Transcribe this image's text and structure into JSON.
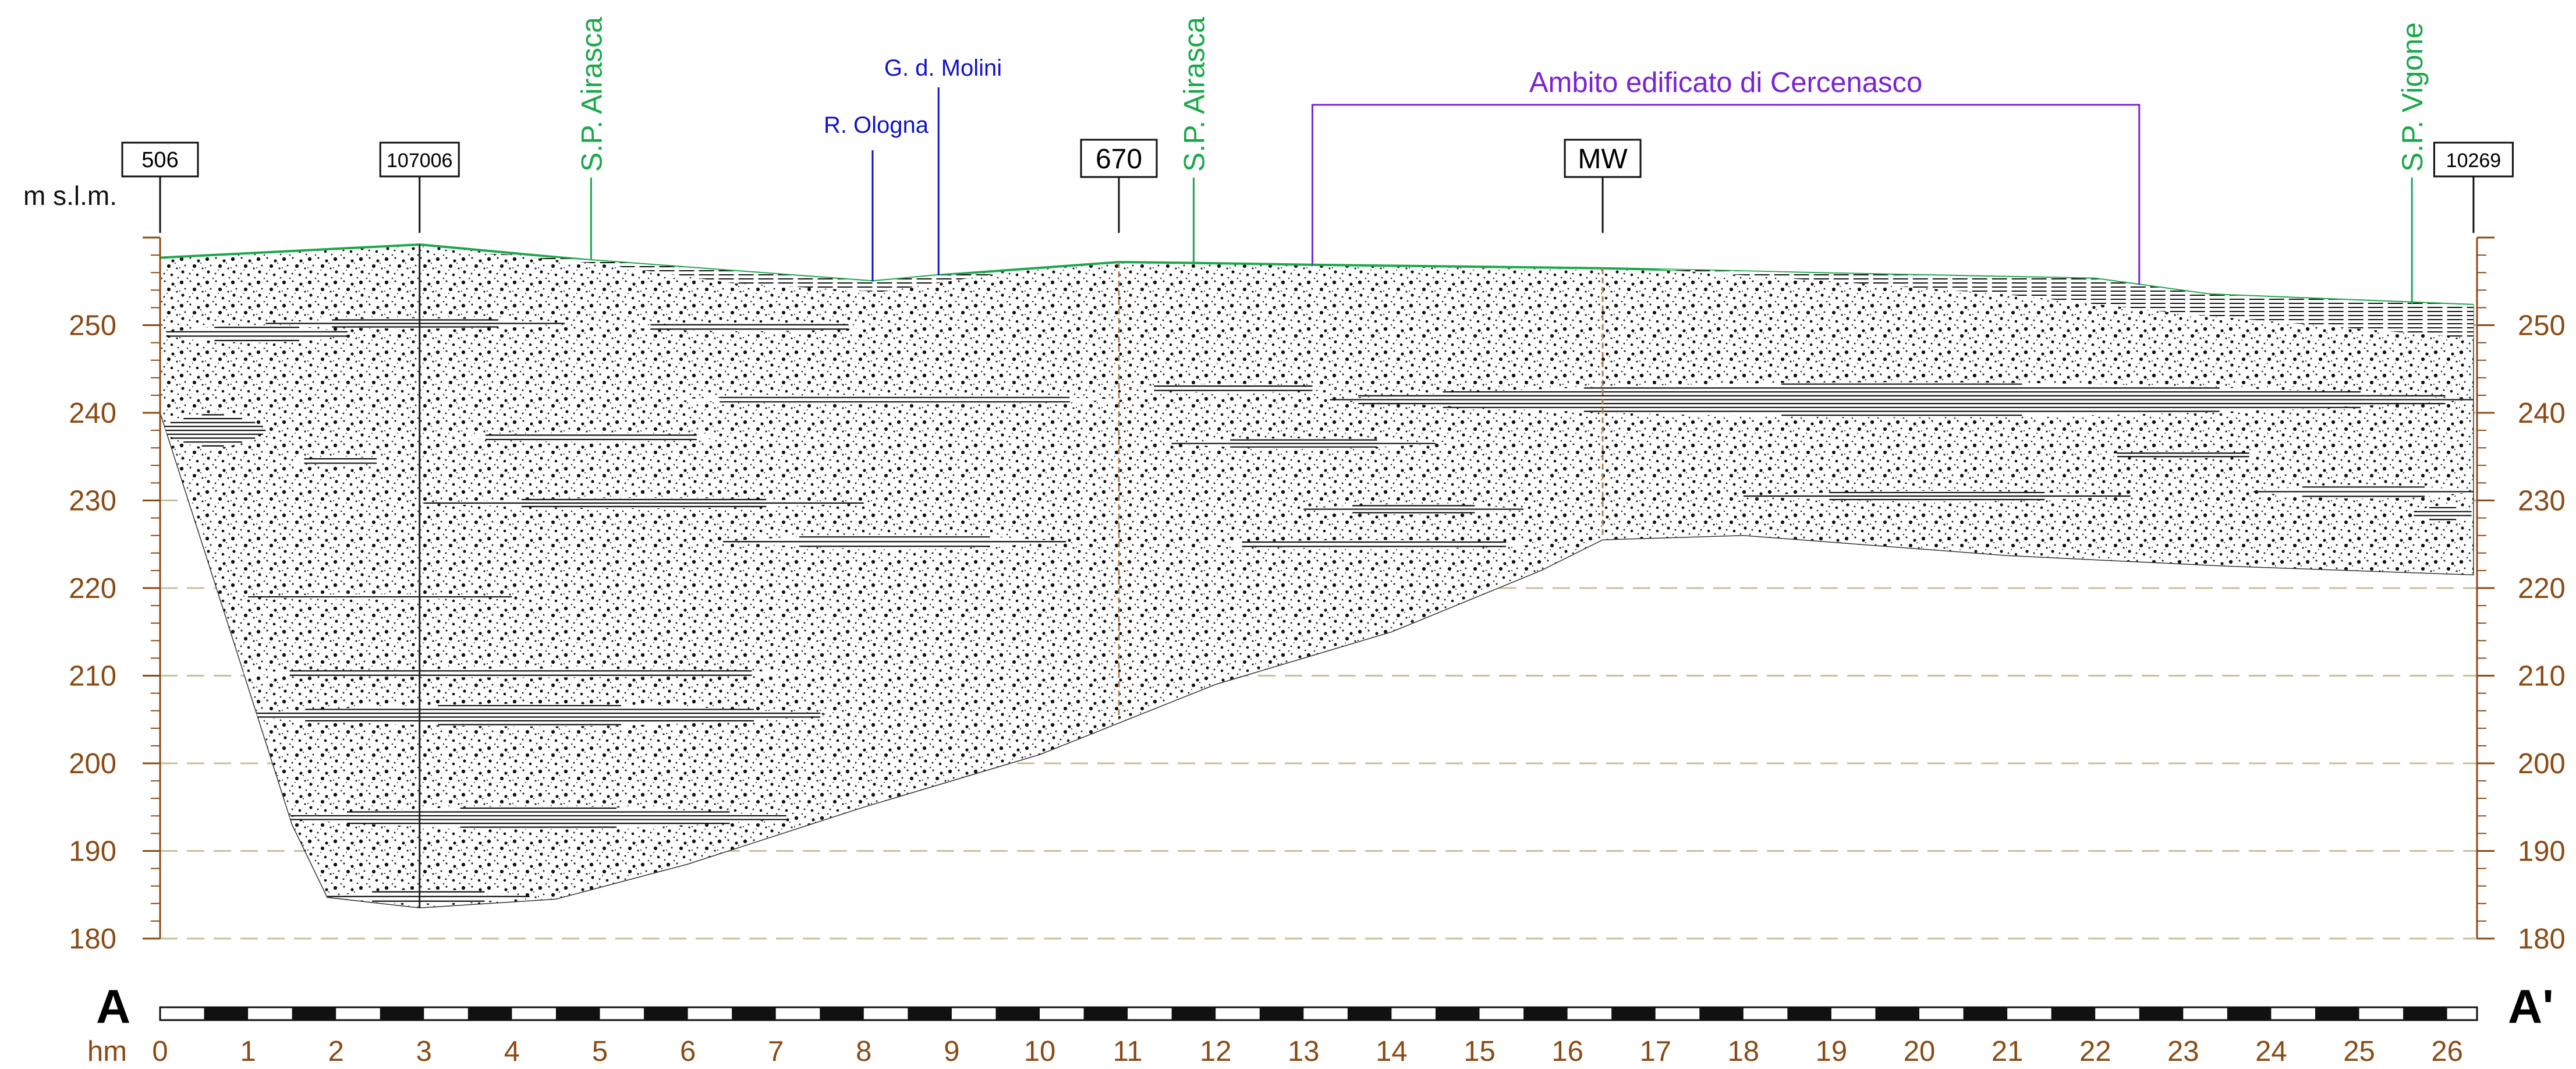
{
  "chart_data": {
    "type": "geologic-cross-section",
    "y_unit_label": "m s.l.m.",
    "x_unit_label": "hm",
    "x_range": [
      0,
      26.3
    ],
    "y_range": [
      180,
      260
    ],
    "y_ticks": [
      180,
      190,
      200,
      210,
      220,
      230,
      240,
      250
    ],
    "x_ticks": [
      "0",
      "1",
      "2",
      "3",
      "4",
      "5",
      "6",
      "7",
      "8",
      "9",
      "10",
      "11",
      "12",
      "13",
      "14",
      "15",
      "16",
      "17",
      "18",
      "19",
      "20",
      "21",
      "22",
      "23",
      "24",
      "25",
      "26"
    ],
    "section_start_label": "A",
    "section_end_label": "A'",
    "wells": [
      {
        "label": "506",
        "x": 0
      },
      {
        "label": "107006",
        "x": 2.95
      },
      {
        "label": "670",
        "x": 10.9
      },
      {
        "label": "MW",
        "x": 16.4
      },
      {
        "label": "10269",
        "x": 26.3
      }
    ],
    "roads": [
      {
        "label": "S.P. Airasca",
        "x": 4.9
      },
      {
        "label": "S.P. Airasca",
        "x": 11.75
      },
      {
        "label": "S.P. Vigone",
        "x": 25.6
      }
    ],
    "watercourses": [
      {
        "label": "R. Ologna",
        "x": 8.1
      },
      {
        "label": "G. d. Molini",
        "x": 8.85
      }
    ],
    "urban_area": {
      "label": "Ambito edificato di Cercenasco",
      "x_start": 13.1,
      "x_end": 22.5
    },
    "ground_profile": [
      [
        0,
        257.7
      ],
      [
        2.95,
        259.2
      ],
      [
        4.9,
        257.4
      ],
      [
        8.1,
        255
      ],
      [
        8.85,
        255.7
      ],
      [
        10.9,
        257.2
      ],
      [
        11.75,
        257.1
      ],
      [
        13.1,
        256.9
      ],
      [
        16.4,
        256.5
      ],
      [
        19,
        255.9
      ],
      [
        22,
        255.3
      ],
      [
        23.3,
        253.5
      ],
      [
        26.3,
        252.3
      ]
    ],
    "base_profile": [
      [
        0,
        240
      ],
      [
        0.8,
        215
      ],
      [
        1.5,
        193
      ],
      [
        1.9,
        184.7
      ],
      [
        2.95,
        183.5
      ],
      [
        4.5,
        184.5
      ],
      [
        6,
        188.5
      ],
      [
        8,
        195
      ],
      [
        10,
        201
      ],
      [
        11,
        205
      ],
      [
        12,
        209
      ],
      [
        14,
        215
      ],
      [
        15.7,
        222
      ],
      [
        16.4,
        225.5
      ],
      [
        18,
        226
      ],
      [
        21,
        223.7
      ],
      [
        23.5,
        222.5
      ],
      [
        26.3,
        221.5
      ]
    ],
    "surface_silt_lenses": [
      {
        "x0": 3.2,
        "x1": 9.6,
        "top": [
          [
            3.2,
            258.6
          ],
          [
            4.9,
            257.4
          ],
          [
            8.1,
            255
          ],
          [
            8.85,
            255.7
          ],
          [
            9.6,
            256
          ]
        ],
        "bottom": [
          [
            3.2,
            258.6
          ],
          [
            5,
            257
          ],
          [
            6.5,
            254.8
          ],
          [
            8.2,
            253.8
          ],
          [
            9.6,
            256
          ]
        ]
      },
      {
        "x0": 17,
        "x1": 26.3,
        "top": [
          [
            17,
            256.4
          ],
          [
            19,
            255.9
          ],
          [
            22,
            255.3
          ],
          [
            23.3,
            253.5
          ],
          [
            26.3,
            252.3
          ]
        ],
        "bottom": [
          [
            17,
            256.4
          ],
          [
            19,
            255
          ],
          [
            21,
            253.5
          ],
          [
            23,
            251.3
          ],
          [
            24.5,
            250
          ],
          [
            26.3,
            248.5
          ]
        ]
      }
    ],
    "silt_lenses": [
      {
        "x0": 0,
        "x1": 2.2,
        "y": 249,
        "t": 2
      },
      {
        "x0": 1.2,
        "x1": 4.6,
        "y": 250.2,
        "t": 1.2
      },
      {
        "x0": 5.2,
        "x1": 8.2,
        "y": 249.8,
        "t": 1
      },
      {
        "x0": 0,
        "x1": 1.2,
        "y": 238,
        "t": 4
      },
      {
        "x0": 1.5,
        "x1": 2.6,
        "y": 234.5,
        "t": 1
      },
      {
        "x0": 3.3,
        "x1": 6.5,
        "y": 237.2,
        "t": 1
      },
      {
        "x0": 5.7,
        "x1": 11,
        "y": 241.5,
        "t": 1
      },
      {
        "x0": 3,
        "x1": 8,
        "y": 229.7,
        "t": 1.2
      },
      {
        "x0": 6.4,
        "x1": 10.3,
        "y": 225.3,
        "t": 1.6
      },
      {
        "x0": 1,
        "x1": 4,
        "y": 219,
        "t": 0.6
      },
      {
        "x0": 0.6,
        "x1": 7.6,
        "y": 210.3,
        "t": 1
      },
      {
        "x0": 0.8,
        "x1": 7.6,
        "y": 205.5,
        "t": 2.6
      },
      {
        "x0": 1.4,
        "x1": 7.2,
        "y": 193.8,
        "t": 2.6
      },
      {
        "x0": 1.9,
        "x1": 4.2,
        "y": 184.8,
        "t": 1.6
      },
      {
        "x0": 11,
        "x1": 13.4,
        "y": 242.8,
        "t": 1
      },
      {
        "x0": 11.5,
        "x1": 14.5,
        "y": 236.5,
        "t": 1.2
      },
      {
        "x0": 11.8,
        "x1": 15.8,
        "y": 225,
        "t": 1
      },
      {
        "x0": 13,
        "x1": 15.5,
        "y": 229,
        "t": 1.2
      },
      {
        "x0": 13.3,
        "x1": 26.3,
        "y": 241.5,
        "t": 4
      },
      {
        "x0": 18,
        "x1": 22.4,
        "y": 230.5,
        "t": 1.2
      },
      {
        "x0": 22,
        "x1": 24,
        "y": 235.2,
        "t": 0.8
      },
      {
        "x0": 23.8,
        "x1": 26.3,
        "y": 231,
        "t": 1.6
      },
      {
        "x0": 25.6,
        "x1": 26.3,
        "y": 228.5,
        "t": 1.8
      }
    ],
    "colors": {
      "axis": "#8b4a14",
      "gridline": "#c8c19a",
      "ground_line": "#1aa84a",
      "road": "#1aa84a",
      "watercourse": "#1212c8",
      "urban_area": "#7a22d6",
      "borehole": "#b08050"
    }
  }
}
